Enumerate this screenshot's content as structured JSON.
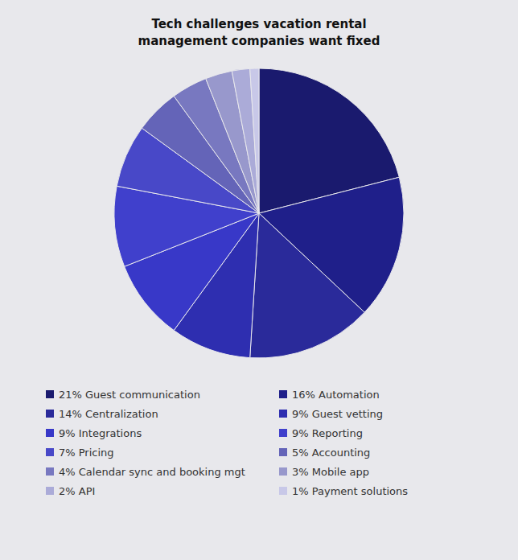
{
  "chart_data": {
    "type": "pie",
    "title": "Tech challenges vacation rental\nmanagement companies want fixed",
    "categories": [
      "21% Guest communication",
      "16% Automation",
      "14% Centralization",
      "9% Guest vetting",
      "9% Integrations",
      "9% Reporting",
      "7% Pricing",
      "5% Accounting",
      "4% Calendar sync and booking mgt",
      "3% Mobile app",
      "2% API",
      "1% Payment solutions"
    ],
    "values": [
      21,
      16,
      14,
      9,
      9,
      9,
      7,
      5,
      4,
      3,
      2,
      1
    ],
    "colors": [
      "#1a1a6e",
      "#1f1f8a",
      "#2a2a9a",
      "#2e2eb0",
      "#3838c8",
      "#4040cc",
      "#4848c8",
      "#6464b8",
      "#7878c0",
      "#9898cc",
      "#ababd8",
      "#c8c8e8"
    ],
    "legend": "bottom"
  }
}
